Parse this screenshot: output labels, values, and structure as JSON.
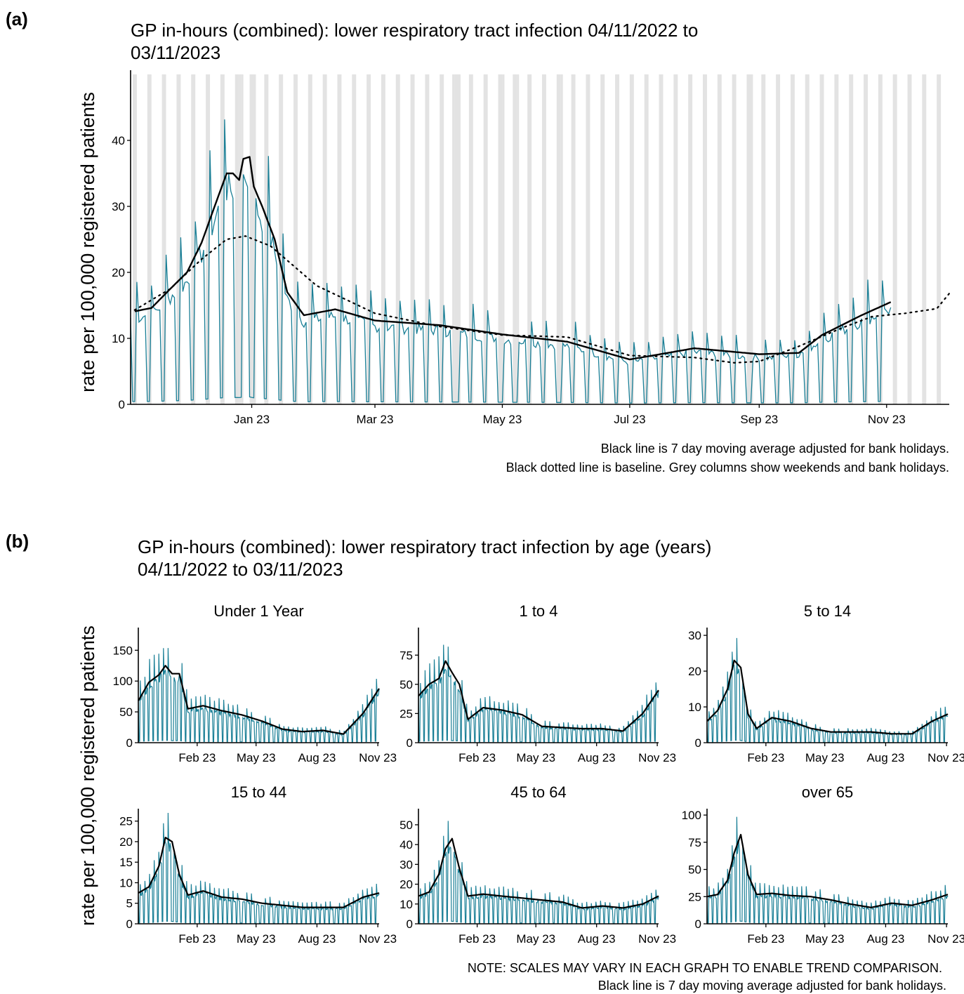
{
  "panel_a": {
    "label": "(a)",
    "title_line1": "GP in-hours (combined): lower respiratory tract infection 04/11/2022 to",
    "title_line2": "03/11/2023",
    "ylabel": "rate per 100,000 registered patients",
    "note_line1": "Black line is 7 day moving average adjusted for bank holidays.",
    "note_line2": "Black dotted line is baseline. Grey columns show weekends and bank holidays."
  },
  "panel_b": {
    "label": "(b)",
    "title_line1": "GP in-hours (combined): lower respiratory tract infection by age (years)",
    "title_line2": "04/11/2022 to 03/11/2023",
    "ylabel": "rate per 100,000 registered patients",
    "note_line1": "NOTE: SCALES MAY VARY IN EACH GRAPH TO ENABLE TREND COMPARISON.",
    "note_line2": "Black line is 7 day moving average adjusted for bank holidays."
  },
  "colors": {
    "daily": "#1a7f96",
    "average": "#000000",
    "weekend": "#e3e3e3"
  },
  "chart_data": [
    {
      "id": "a",
      "type": "line",
      "title": "GP in-hours (combined): lower respiratory tract infection 04/11/2022 to 03/11/2023",
      "ylabel": "rate per 100,000 registered patients",
      "xlim": [
        "2022-11-04",
        "2023-12-01"
      ],
      "ylim": [
        0,
        50
      ],
      "x_ticks": [
        "2023-01-01",
        "2023-03-01",
        "2023-05-01",
        "2023-07-01",
        "2023-09-01",
        "2023-11-01"
      ],
      "x_tick_labels": [
        "Jan 23",
        "Mar 23",
        "May 23",
        "Jul 23",
        "Sep 23",
        "Nov 23"
      ],
      "y_ticks": [
        0,
        10,
        20,
        30,
        40
      ],
      "grey_columns": "weekends and bank holidays",
      "series": [
        {
          "style": "line-teal"
        },
        {
          "style": "solid-black",
          "x": [
            "2022-11-06",
            "2022-11-14",
            "2022-11-23",
            "2022-12-01",
            "2022-12-08",
            "2022-12-14",
            "2022-12-20",
            "2022-12-23",
            "2022-12-26",
            "2022-12-28",
            "2022-12-31",
            "2023-01-02",
            "2023-01-06",
            "2023-01-12",
            "2023-01-18",
            "2023-01-26",
            "2023-02-10",
            "2023-03-01",
            "2023-04-01",
            "2023-05-01",
            "2023-06-01",
            "2023-07-01",
            "2023-08-01",
            "2023-09-01",
            "2023-09-20",
            "2023-10-01",
            "2023-10-20",
            "2023-11-03"
          ],
          "y": [
            14.1,
            14.6,
            17.5,
            20,
            24.5,
            29.8,
            35,
            35,
            34,
            37.2,
            37.5,
            33,
            30,
            25,
            17,
            13.5,
            14.4,
            12.7,
            12,
            10.6,
            9.5,
            6.8,
            8.5,
            7.6,
            7.8,
            10.5,
            13.5,
            15.5
          ]
        },
        {
          "style": "dotted-black",
          "x": [
            "2022-11-06",
            "2022-11-23",
            "2022-12-08",
            "2022-12-20",
            "2022-12-29",
            "2023-01-10",
            "2023-02-01",
            "2023-03-01",
            "2023-04-01",
            "2023-05-01",
            "2023-06-01",
            "2023-07-01",
            "2023-08-01",
            "2023-08-20",
            "2023-09-01",
            "2023-09-20",
            "2023-10-10",
            "2023-10-25",
            "2023-11-10",
            "2023-11-25",
            "2023-12-01"
          ],
          "y": [
            14.3,
            17.5,
            22,
            25,
            25.5,
            24,
            18,
            13.8,
            11.8,
            10.5,
            10.2,
            7.4,
            7.1,
            6.3,
            6.5,
            8.8,
            11.5,
            13.3,
            13.8,
            14.5,
            16.8
          ]
        }
      ]
    },
    {
      "id": "b1",
      "type": "line",
      "title": "Under 1 Year",
      "ylim": [
        0,
        180
      ],
      "y_ticks": [
        0,
        50,
        100,
        150
      ],
      "x_ticks": [
        "2023-02-01",
        "2023-05-01",
        "2023-08-01",
        "2023-11-01"
      ],
      "x_tick_labels": [
        "Feb 23",
        "May 23",
        "Aug 23",
        "Nov 23"
      ],
      "series": [
        {
          "style": "line-teal"
        },
        {
          "style": "solid-black",
          "x": [
            "2022-11-04",
            "2022-11-20",
            "2022-12-05",
            "2022-12-15",
            "2022-12-25",
            "2023-01-05",
            "2023-01-18",
            "2023-02-10",
            "2023-03-10",
            "2023-04-10",
            "2023-05-10",
            "2023-06-10",
            "2023-07-10",
            "2023-08-10",
            "2023-09-10",
            "2023-10-10",
            "2023-11-03"
          ],
          "y": [
            68,
            98,
            110,
            125,
            112,
            112,
            55,
            60,
            52,
            45,
            35,
            22,
            18,
            20,
            14,
            48,
            88
          ]
        }
      ]
    },
    {
      "id": "b2",
      "type": "line",
      "title": "1 to 4",
      "ylim": [
        0,
        95
      ],
      "y_ticks": [
        0,
        25,
        50,
        75
      ],
      "x_ticks": [
        "2023-02-01",
        "2023-05-01",
        "2023-08-01",
        "2023-11-01"
      ],
      "x_tick_labels": [
        "Feb 23",
        "May 23",
        "Aug 23",
        "Nov 23"
      ],
      "series": [
        {
          "style": "line-teal"
        },
        {
          "style": "solid-black",
          "x": [
            "2022-11-04",
            "2022-11-20",
            "2022-12-05",
            "2022-12-15",
            "2022-12-25",
            "2023-01-05",
            "2023-01-18",
            "2023-02-10",
            "2023-03-10",
            "2023-04-10",
            "2023-05-10",
            "2023-06-10",
            "2023-07-10",
            "2023-08-10",
            "2023-09-10",
            "2023-10-10",
            "2023-11-03"
          ],
          "y": [
            40,
            50,
            55,
            70,
            60,
            50,
            20,
            30,
            28,
            24,
            14,
            13,
            12,
            12,
            10,
            25,
            45
          ]
        }
      ]
    },
    {
      "id": "b3",
      "type": "line",
      "title": "5 to 14",
      "ylim": [
        0,
        31
      ],
      "y_ticks": [
        0,
        10,
        20,
        30
      ],
      "x_ticks": [
        "2023-02-01",
        "2023-05-01",
        "2023-08-01",
        "2023-11-01"
      ],
      "x_tick_labels": [
        "Feb 23",
        "May 23",
        "Aug 23",
        "Nov 23"
      ],
      "series": [
        {
          "style": "line-teal"
        },
        {
          "style": "solid-black",
          "x": [
            "2022-11-04",
            "2022-11-20",
            "2022-12-05",
            "2022-12-15",
            "2022-12-25",
            "2023-01-05",
            "2023-01-18",
            "2023-02-10",
            "2023-03-10",
            "2023-04-10",
            "2023-05-10",
            "2023-06-10",
            "2023-07-10",
            "2023-08-10",
            "2023-09-10",
            "2023-10-10",
            "2023-11-03"
          ],
          "y": [
            6,
            9,
            15,
            23,
            21,
            8,
            4,
            7,
            6,
            4,
            3,
            3,
            3,
            2.5,
            2.5,
            6,
            8
          ]
        }
      ]
    },
    {
      "id": "b4",
      "type": "line",
      "title": "15 to 44",
      "ylim": [
        0,
        27
      ],
      "y_ticks": [
        0,
        5,
        10,
        15,
        20,
        25
      ],
      "x_ticks": [
        "2023-02-01",
        "2023-05-01",
        "2023-08-01",
        "2023-11-01"
      ],
      "x_tick_labels": [
        "Feb 23",
        "May 23",
        "Aug 23",
        "Nov 23"
      ],
      "series": [
        {
          "style": "line-teal"
        },
        {
          "style": "solid-black",
          "x": [
            "2022-11-04",
            "2022-11-20",
            "2022-12-05",
            "2022-12-15",
            "2022-12-25",
            "2023-01-05",
            "2023-01-18",
            "2023-02-10",
            "2023-03-10",
            "2023-04-10",
            "2023-05-10",
            "2023-06-10",
            "2023-07-10",
            "2023-08-10",
            "2023-09-10",
            "2023-10-10",
            "2023-11-03"
          ],
          "y": [
            7.5,
            9,
            14,
            21,
            20,
            12,
            7,
            8,
            6.5,
            6,
            5,
            4.5,
            4,
            4,
            4,
            6.5,
            7.5
          ]
        }
      ]
    },
    {
      "id": "b5",
      "type": "line",
      "title": "45 to 64",
      "ylim": [
        0,
        56
      ],
      "y_ticks": [
        0,
        10,
        20,
        30,
        40,
        50
      ],
      "x_ticks": [
        "2023-02-01",
        "2023-05-01",
        "2023-08-01",
        "2023-11-01"
      ],
      "x_tick_labels": [
        "Feb 23",
        "May 23",
        "Aug 23",
        "Nov 23"
      ],
      "series": [
        {
          "style": "line-teal"
        },
        {
          "style": "solid-black",
          "x": [
            "2022-11-04",
            "2022-11-20",
            "2022-12-05",
            "2022-12-15",
            "2022-12-25",
            "2023-01-05",
            "2023-01-18",
            "2023-02-10",
            "2023-03-10",
            "2023-04-10",
            "2023-05-10",
            "2023-06-10",
            "2023-07-10",
            "2023-08-10",
            "2023-09-10",
            "2023-10-10",
            "2023-11-03"
          ],
          "y": [
            14,
            16,
            25,
            38,
            43,
            28,
            14,
            15,
            14,
            13,
            12,
            11,
            8,
            9,
            8,
            10,
            14
          ]
        }
      ]
    },
    {
      "id": "b6",
      "type": "line",
      "title": "over 65",
      "ylim": [
        0,
        102
      ],
      "y_ticks": [
        0,
        25,
        50,
        75,
        100
      ],
      "x_ticks": [
        "2023-02-01",
        "2023-05-01",
        "2023-08-01",
        "2023-11-01"
      ],
      "x_tick_labels": [
        "Feb 23",
        "May 23",
        "Aug 23",
        "Nov 23"
      ],
      "series": [
        {
          "style": "line-teal"
        },
        {
          "style": "solid-black",
          "x": [
            "2022-11-04",
            "2022-11-20",
            "2022-12-05",
            "2022-12-15",
            "2022-12-25",
            "2023-01-05",
            "2023-01-18",
            "2023-02-10",
            "2023-03-10",
            "2023-04-10",
            "2023-05-10",
            "2023-06-10",
            "2023-07-10",
            "2023-08-10",
            "2023-09-10",
            "2023-10-10",
            "2023-11-03"
          ],
          "y": [
            25,
            27,
            40,
            65,
            82,
            45,
            27,
            28,
            26,
            25,
            22,
            18,
            15,
            19,
            17,
            22,
            27
          ]
        }
      ]
    }
  ]
}
